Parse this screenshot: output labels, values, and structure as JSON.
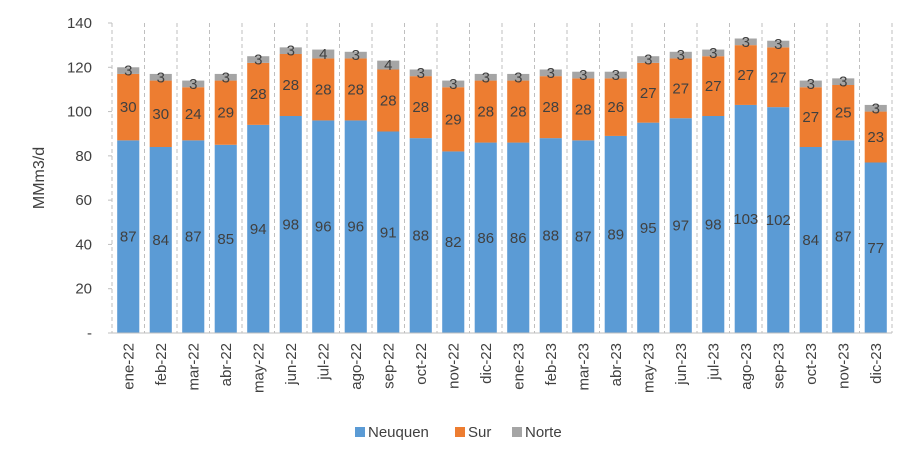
{
  "chart_data": {
    "type": "bar",
    "stacked": true,
    "ylabel": "MMm3/d",
    "ylim": [
      0,
      140
    ],
    "yticks": [
      0,
      20,
      40,
      60,
      80,
      100,
      120,
      140
    ],
    "ytick_labels": [
      "-",
      "20",
      "40",
      "60",
      "80",
      "100",
      "120",
      "140"
    ],
    "grid": "vertical dashed between categories",
    "legend_position": "bottom",
    "categories": [
      "ene-22",
      "feb-22",
      "mar-22",
      "abr-22",
      "may-22",
      "jun-22",
      "jul-22",
      "ago-22",
      "sep-22",
      "oct-22",
      "nov-22",
      "dic-22",
      "ene-23",
      "feb-23",
      "mar-23",
      "abr-23",
      "may-23",
      "jun-23",
      "jul-23",
      "ago-23",
      "sep-23",
      "oct-23",
      "nov-23",
      "dic-23"
    ],
    "series": [
      {
        "name": "Neuquen",
        "color": "#5B9BD5",
        "values": [
          87,
          84,
          87,
          85,
          94,
          98,
          96,
          96,
          91,
          88,
          82,
          86,
          86,
          88,
          87,
          89,
          95,
          97,
          98,
          103,
          102,
          84,
          87,
          77
        ]
      },
      {
        "name": "Sur",
        "color": "#ED7D31",
        "values": [
          30,
          30,
          24,
          29,
          28,
          28,
          28,
          28,
          28,
          28,
          29,
          28,
          28,
          28,
          28,
          26,
          27,
          27,
          27,
          27,
          27,
          27,
          25,
          23
        ]
      },
      {
        "name": "Norte",
        "color": "#A5A5A5",
        "values": [
          3,
          3,
          3,
          3,
          3,
          3,
          4,
          3,
          4,
          3,
          3,
          3,
          3,
          3,
          3,
          3,
          3,
          3,
          3,
          3,
          3,
          3,
          3,
          3
        ]
      }
    ]
  }
}
